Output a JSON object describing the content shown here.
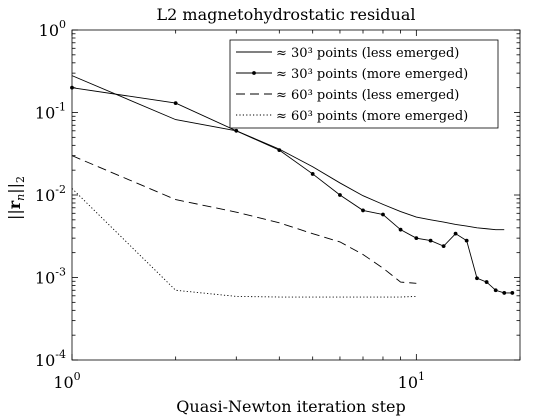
{
  "chart_data": {
    "type": "line",
    "title": "L2 magnetohydrostatic residual",
    "xlabel": "Quasi-Newton iteration step",
    "ylabel": "||r_n||_2",
    "xscale": "log",
    "yscale": "log",
    "xlim": [
      1,
      20
    ],
    "ylim": [
      0.0001,
      1
    ],
    "x_ticks": [
      {
        "value": 1,
        "mantissa": "10",
        "exp": "0"
      },
      {
        "value": 10,
        "mantissa": "10",
        "exp": "1"
      }
    ],
    "y_ticks": [
      {
        "value": 1,
        "mantissa": "10",
        "exp": "0"
      },
      {
        "value": 0.1,
        "mantissa": "10",
        "exp": "-1"
      },
      {
        "value": 0.01,
        "mantissa": "10",
        "exp": "-2"
      },
      {
        "value": 0.001,
        "mantissa": "10",
        "exp": "-3"
      },
      {
        "value": 0.0001,
        "mantissa": "10",
        "exp": "-4"
      }
    ],
    "grid": false,
    "legend_position": "top-right",
    "series": [
      {
        "name": "≈ 30³ points (less emerged)",
        "style": "solid",
        "marker": false,
        "x": [
          1,
          2,
          3,
          4,
          5,
          6,
          7,
          8,
          9,
          10,
          11,
          12,
          13,
          14,
          15,
          16,
          17,
          18
        ],
        "y": [
          0.28,
          0.082,
          0.06,
          0.036,
          0.022,
          0.014,
          0.0098,
          0.0077,
          0.0063,
          0.0054,
          0.005,
          0.0047,
          0.0044,
          0.0042,
          0.004,
          0.0039,
          0.0038,
          0.0038
        ]
      },
      {
        "name": "≈ 30³ points (more emerged)",
        "style": "solid",
        "marker": true,
        "x": [
          1,
          2,
          3,
          4,
          5,
          6,
          7,
          8,
          9,
          10,
          11,
          12,
          13,
          14,
          15,
          16,
          17,
          18,
          19
        ],
        "y": [
          0.2,
          0.13,
          0.06,
          0.035,
          0.018,
          0.01,
          0.0065,
          0.0058,
          0.0038,
          0.003,
          0.0028,
          0.0024,
          0.0034,
          0.0028,
          0.00098,
          0.00088,
          0.0007,
          0.00065,
          0.00065
        ]
      },
      {
        "name": "≈ 60³ points (less emerged)",
        "style": "dashed",
        "marker": false,
        "x": [
          1,
          2,
          3,
          4,
          5,
          6,
          7,
          8,
          9,
          10
        ],
        "y": [
          0.03,
          0.0088,
          0.0062,
          0.0046,
          0.0034,
          0.0027,
          0.0019,
          0.0013,
          0.00088,
          0.00085
        ]
      },
      {
        "name": "≈ 60³ points (more emerged)",
        "style": "dotted",
        "marker": false,
        "x": [
          1,
          2,
          3,
          4,
          5,
          6,
          7,
          8,
          9,
          10
        ],
        "y": [
          0.012,
          0.0007,
          0.00059,
          0.00058,
          0.00058,
          0.00058,
          0.00058,
          0.00058,
          0.00058,
          0.00059
        ]
      }
    ]
  }
}
